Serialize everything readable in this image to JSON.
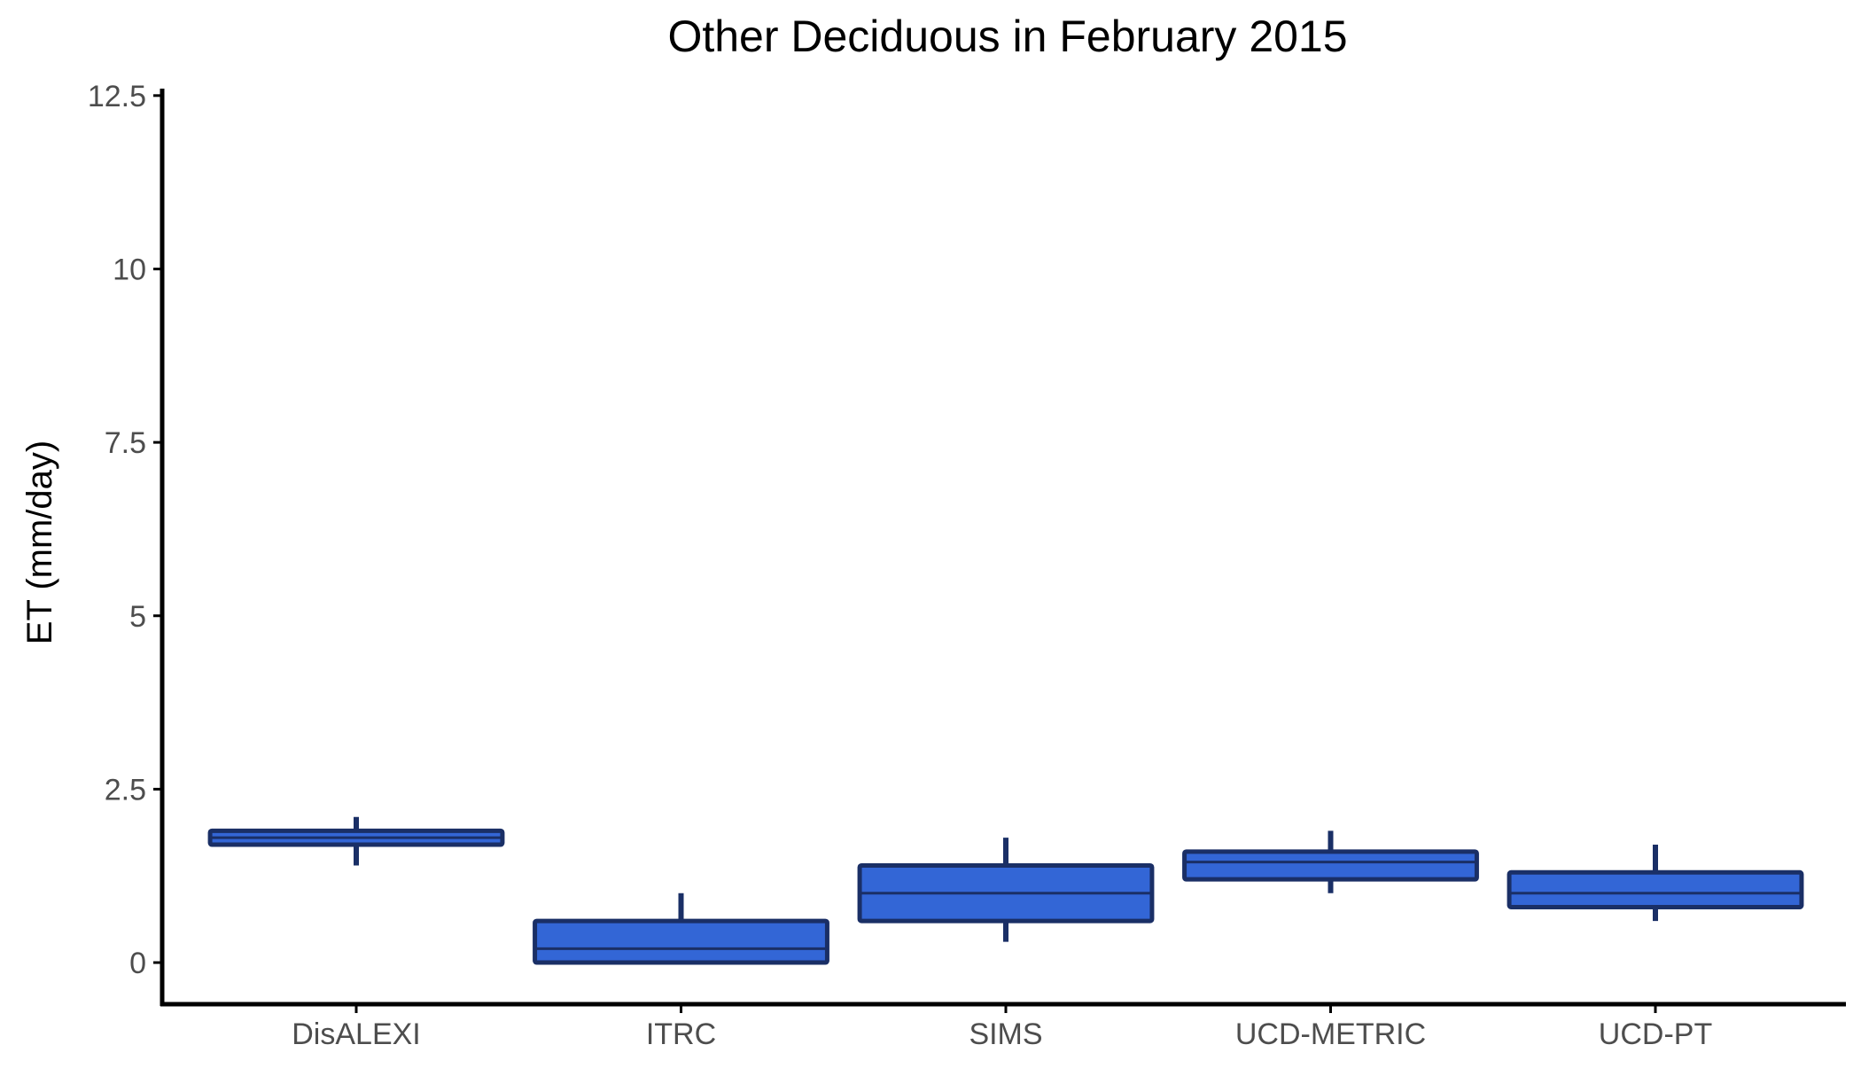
{
  "chart_data": {
    "type": "box",
    "title": "Other Deciduous in February 2015",
    "xlabel": "",
    "ylabel": "ET (mm/day)",
    "ylim": [
      -0.6,
      12.6
    ],
    "yticks": [
      0,
      2.5,
      5,
      7.5,
      10,
      12.5
    ],
    "ytick_labels": [
      "0",
      "2.5",
      "5",
      "7.5",
      "10",
      "12.5"
    ],
    "grid": false,
    "categories": [
      "DisALEXI",
      "ITRC",
      "SIMS",
      "UCD-METRIC",
      "UCD-PT"
    ],
    "boxes": [
      {
        "category": "DisALEXI",
        "whisker_low": 1.4,
        "q1": 1.7,
        "median": 1.8,
        "q3": 1.9,
        "whisker_high": 2.1
      },
      {
        "category": "ITRC",
        "whisker_low": 0.0,
        "q1": 0.0,
        "median": 0.2,
        "q3": 0.6,
        "whisker_high": 1.0
      },
      {
        "category": "SIMS",
        "whisker_low": 0.3,
        "q1": 0.6,
        "median": 1.0,
        "q3": 1.4,
        "whisker_high": 1.8
      },
      {
        "category": "UCD-METRIC",
        "whisker_low": 1.0,
        "q1": 1.2,
        "median": 1.45,
        "q3": 1.6,
        "whisker_high": 1.9
      },
      {
        "category": "UCD-PT",
        "whisker_low": 0.6,
        "q1": 0.8,
        "median": 1.0,
        "q3": 1.3,
        "whisker_high": 1.7
      }
    ],
    "colors": {
      "box_fill": "#3366d6",
      "box_edge": "#1a2f66",
      "axis": "#000000",
      "tick_label": "#4d4d4d",
      "title": "#000000"
    }
  }
}
